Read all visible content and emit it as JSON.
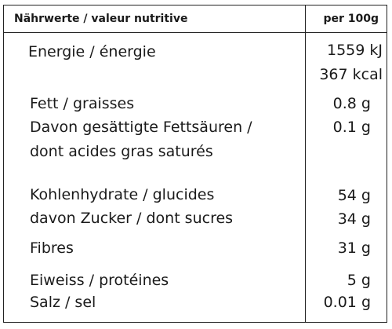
{
  "header": {
    "name": "Nährwerte / valeur nutritive",
    "unit": "per 100g"
  },
  "rows": [
    {
      "label": "Energie / énergie",
      "value": "1559 kJ"
    },
    {
      "label": "",
      "value": "367 kcal"
    },
    {
      "label": "Fett / graisses",
      "value": "0.8 g"
    },
    {
      "label": "Davon gesättigte Fettsäuren /",
      "value": "0.1 g"
    },
    {
      "label": "dont acides gras saturés",
      "value": ""
    },
    {
      "label": "Kohlenhydrate / glucides",
      "value": "54 g"
    },
    {
      "label": "davon Zucker / dont sucres",
      "value": "34 g"
    },
    {
      "label": "Fibres",
      "value": "31 g"
    },
    {
      "label": "Eiweiss / protéines",
      "value": "5 g"
    },
    {
      "label": "Salz / sel",
      "value": "0.01 g"
    }
  ]
}
